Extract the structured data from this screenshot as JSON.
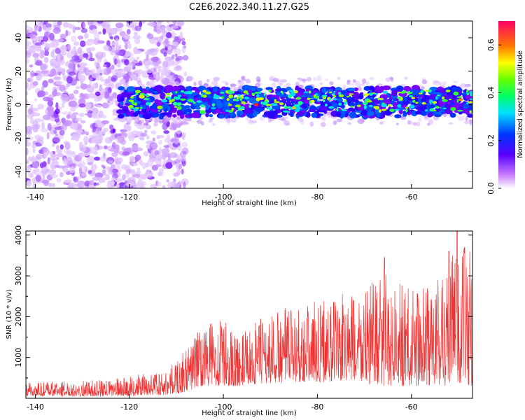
{
  "title": "C2E6.2022.340.11.27.G25",
  "chart_data": [
    {
      "type": "heatmap",
      "xlabel": "Height of straight line (km)",
      "ylabel": "Frequency (Hz)",
      "xlim": [
        -142,
        -47
      ],
      "ylim": [
        -50,
        50
      ],
      "xticks": [
        -140,
        -120,
        -100,
        -80,
        -60
      ],
      "yticks": [
        -40,
        -20,
        0,
        20,
        40
      ],
      "colorbar": {
        "label": "Normalized spectral amplitude",
        "range": [
          0.0,
          0.7
        ],
        "ticks": [
          0.0,
          0.2,
          0.4,
          0.6
        ],
        "colormap": "rainbow"
      },
      "regions": [
        {
          "description": "diffuse low-amplitude noise",
          "x": [
            -142,
            -108
          ],
          "y": [
            -50,
            50
          ]
        },
        {
          "description": "signal band",
          "x": [
            -122,
            -47
          ],
          "y": [
            -7,
            10
          ],
          "center_frequency": 2
        }
      ]
    },
    {
      "type": "line",
      "xlabel": "Height of straight line (km)",
      "ylabel": "SNR (10 * v/v)",
      "xlim": [
        -142,
        -47
      ],
      "ylim": [
        0,
        4100
      ],
      "xticks": [
        -140,
        -120,
        -100,
        -80,
        -60
      ],
      "yticks": [
        1000,
        2000,
        3000,
        4000
      ],
      "color": "#ee3333",
      "envelope": [
        {
          "x": -142,
          "low": 50,
          "high": 400
        },
        {
          "x": -125,
          "low": 50,
          "high": 450
        },
        {
          "x": -112,
          "low": 80,
          "high": 700
        },
        {
          "x": -108,
          "low": 150,
          "high": 1200
        },
        {
          "x": -105,
          "low": 300,
          "high": 1800
        },
        {
          "x": -100,
          "low": 300,
          "high": 2000
        },
        {
          "x": -97,
          "low": 300,
          "high": 1500
        },
        {
          "x": -92,
          "low": 350,
          "high": 2000
        },
        {
          "x": -85,
          "low": 400,
          "high": 2300
        },
        {
          "x": -78,
          "low": 400,
          "high": 2500
        },
        {
          "x": -72,
          "low": 400,
          "high": 2600
        },
        {
          "x": -66,
          "low": 300,
          "high": 3100
        },
        {
          "x": -60,
          "low": 300,
          "high": 2700
        },
        {
          "x": -55,
          "low": 300,
          "high": 2900
        },
        {
          "x": -50,
          "low": 300,
          "high": 4000
        },
        {
          "x": -47,
          "low": 300,
          "high": 3600
        }
      ],
      "peaks": [
        {
          "x": -65.7,
          "y": 3450
        },
        {
          "x": -52,
          "y": 3600
        },
        {
          "x": -50.3,
          "y": 4100
        },
        {
          "x": -48.7,
          "y": 3700
        }
      ]
    }
  ]
}
